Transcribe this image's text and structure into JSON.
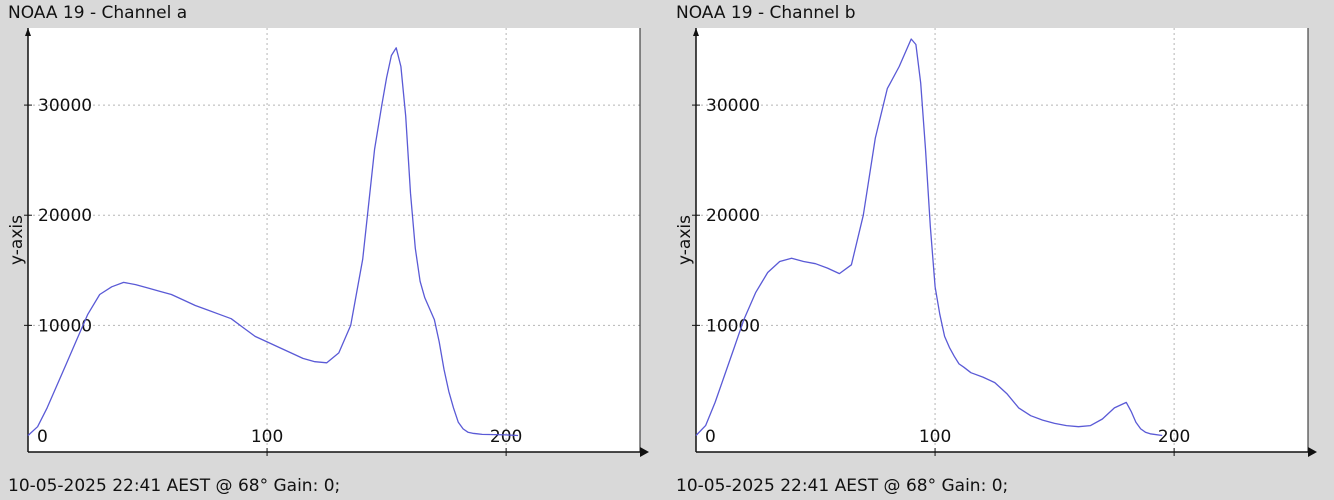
{
  "chart_data": [
    {
      "type": "line",
      "title": "NOAA 19 - Channel a",
      "ylabel": "y-axis",
      "xlabel": "",
      "footer": "10-05-2025 22:41 AEST @ 68° Gain: 0;",
      "xlim": [
        0,
        256
      ],
      "ylim": [
        -1500,
        37000
      ],
      "x_ticks": [
        0,
        100,
        200
      ],
      "y_ticks": [
        10000,
        20000,
        30000
      ],
      "grid": true,
      "line_color": "#5a5ad6",
      "series": [
        {
          "x": [
            0,
            4,
            8,
            12,
            16,
            20,
            25,
            30,
            35,
            40,
            45,
            50,
            55,
            60,
            65,
            70,
            75,
            80,
            85,
            90,
            95,
            100,
            105,
            110,
            115,
            120,
            125,
            130,
            135,
            140,
            145,
            148,
            150,
            152,
            154,
            156,
            158,
            160,
            162,
            164,
            166,
            168,
            170,
            172,
            174,
            176,
            178,
            180,
            182,
            184,
            186,
            188,
            190,
            195,
            200,
            205
          ],
          "values": [
            0,
            800,
            2500,
            4500,
            6500,
            8500,
            11000,
            12800,
            13500,
            13900,
            13700,
            13400,
            13100,
            12800,
            12300,
            11800,
            11400,
            11000,
            10600,
            9800,
            9000,
            8500,
            8000,
            7500,
            7000,
            6700,
            6600,
            7500,
            10000,
            16000,
            26000,
            30000,
            32500,
            34500,
            35200,
            33500,
            29000,
            22000,
            17000,
            14000,
            12500,
            11500,
            10500,
            8500,
            6000,
            4000,
            2500,
            1200,
            600,
            300,
            200,
            150,
            100,
            80,
            50,
            0
          ]
        }
      ]
    },
    {
      "type": "line",
      "title": "NOAA 19 - Channel b",
      "ylabel": "y-axis",
      "xlabel": "",
      "footer": "10-05-2025 22:41 AEST @ 68° Gain: 0;",
      "xlim": [
        0,
        256
      ],
      "ylim": [
        -1500,
        37000
      ],
      "x_ticks": [
        0,
        100,
        200
      ],
      "y_ticks": [
        10000,
        20000,
        30000
      ],
      "grid": true,
      "line_color": "#5a5ad6",
      "series": [
        {
          "x": [
            0,
            4,
            8,
            12,
            16,
            20,
            25,
            30,
            35,
            40,
            45,
            50,
            55,
            60,
            65,
            70,
            75,
            80,
            85,
            88,
            90,
            92,
            94,
            96,
            98,
            100,
            102,
            104,
            106,
            108,
            110,
            112,
            115,
            120,
            125,
            130,
            135,
            140,
            145,
            150,
            155,
            160,
            165,
            170,
            175,
            180,
            182,
            184,
            186,
            188,
            190,
            195
          ],
          "values": [
            0,
            900,
            3000,
            5500,
            8000,
            10500,
            13000,
            14800,
            15800,
            16100,
            15800,
            15600,
            15200,
            14700,
            15500,
            20000,
            27000,
            31500,
            33500,
            35000,
            36000,
            35500,
            32000,
            26000,
            19000,
            13500,
            11000,
            9000,
            8000,
            7200,
            6500,
            6200,
            5700,
            5300,
            4800,
            3800,
            2500,
            1800,
            1400,
            1100,
            900,
            800,
            900,
            1500,
            2500,
            3000,
            2200,
            1200,
            600,
            300,
            150,
            0
          ]
        }
      ]
    }
  ]
}
